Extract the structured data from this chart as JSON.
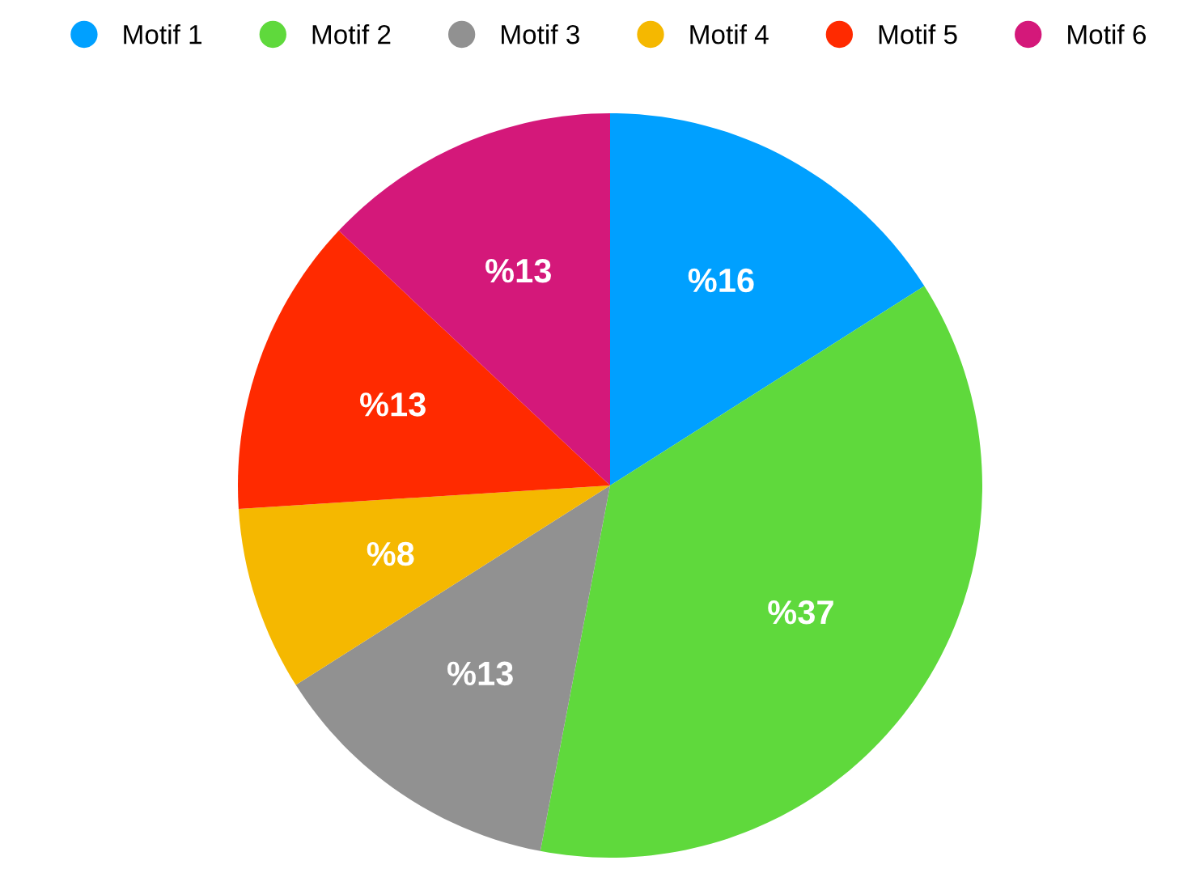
{
  "chart_data": {
    "type": "pie",
    "categories": [
      "Motif 1",
      "Motif 2",
      "Motif 3",
      "Motif 4",
      "Motif 5",
      "Motif 6"
    ],
    "values": [
      16,
      37,
      13,
      8,
      13,
      13
    ],
    "value_labels": [
      "%16",
      "%37",
      "%13",
      "%8",
      "%13",
      "%13"
    ],
    "colors": [
      "#00a0ff",
      "#5fd93c",
      "#919191",
      "#f5b800",
      "#ff2a00",
      "#d4187a"
    ],
    "legend": "top"
  }
}
